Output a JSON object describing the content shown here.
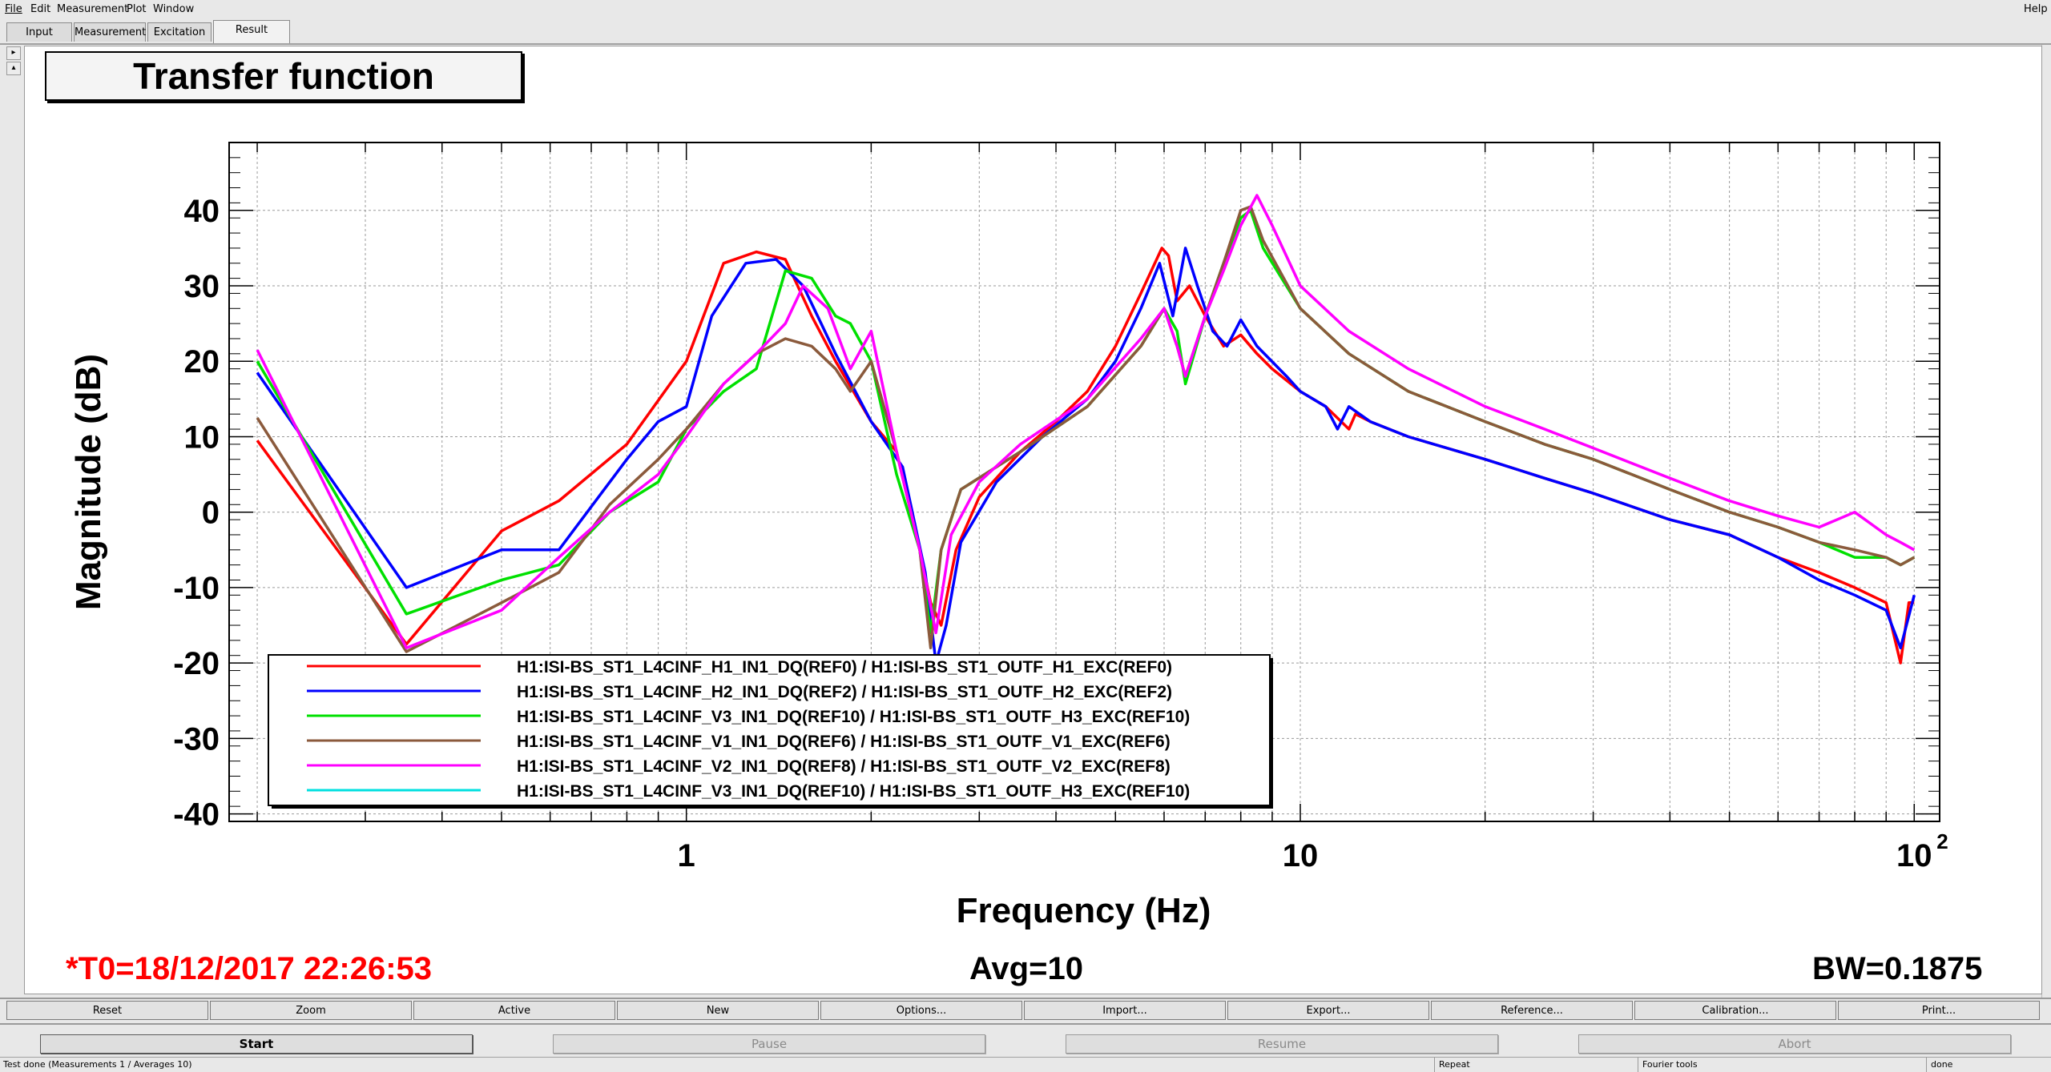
{
  "menu": {
    "file": "File",
    "edit": "Edit",
    "measurement": "Measurement",
    "plot": "Plot",
    "window": "Window",
    "help": "Help"
  },
  "tabs": [
    "Input",
    "Measurement",
    "Excitation",
    "Result"
  ],
  "plot": {
    "title": "Transfer function",
    "t0": "*T0=18/12/2017 22:26:53",
    "avg": "Avg=10",
    "bw": "BW=0.1875"
  },
  "chart_data": {
    "type": "line",
    "title": "Transfer function",
    "xlabel": "Frequency (Hz)",
    "ylabel": "Magnitude (dB)",
    "x_scale": "log",
    "xlim": [
      0.18,
      110
    ],
    "ylim": [
      -41,
      49
    ],
    "x_ticks": [
      {
        "value": 1,
        "label": "1"
      },
      {
        "value": 10,
        "label": "10"
      },
      {
        "value": 100,
        "label": "10",
        "sup": "2"
      }
    ],
    "y_ticks": [
      40,
      30,
      20,
      10,
      0,
      -10,
      -20,
      -30,
      -40
    ],
    "grid": true,
    "legend_position": "bottom-left",
    "series": [
      {
        "name": "H1:ISI-BS_ST1_L4CINF_H1_IN1_DQ(REF0) / H1:ISI-BS_ST1_OUTF_H1_EXC(REF0)",
        "color": "#ff0000",
        "points": [
          [
            0.2,
            9.5
          ],
          [
            0.35,
            -17.5
          ],
          [
            0.5,
            -2.5
          ],
          [
            0.62,
            1.5
          ],
          [
            0.8,
            9
          ],
          [
            1.0,
            20
          ],
          [
            1.15,
            33
          ],
          [
            1.3,
            34.5
          ],
          [
            1.45,
            33.5
          ],
          [
            1.6,
            26
          ],
          [
            1.75,
            20
          ],
          [
            2.0,
            12
          ],
          [
            2.2,
            8
          ],
          [
            2.4,
            -5
          ],
          [
            2.5,
            -12
          ],
          [
            2.6,
            -15
          ],
          [
            2.75,
            -5
          ],
          [
            3.0,
            2
          ],
          [
            3.5,
            8
          ],
          [
            4.0,
            12
          ],
          [
            4.5,
            16
          ],
          [
            5.0,
            22
          ],
          [
            5.5,
            29
          ],
          [
            5.95,
            35
          ],
          [
            6.1,
            34
          ],
          [
            6.3,
            28
          ],
          [
            6.6,
            30
          ],
          [
            7.0,
            26
          ],
          [
            7.5,
            22
          ],
          [
            8.0,
            23.5
          ],
          [
            8.5,
            21
          ],
          [
            9.0,
            19
          ],
          [
            10,
            16
          ],
          [
            11,
            14
          ],
          [
            12,
            11
          ],
          [
            12.3,
            13
          ],
          [
            13,
            12
          ],
          [
            15,
            10
          ],
          [
            20,
            7
          ],
          [
            25,
            4.5
          ],
          [
            30,
            2.5
          ],
          [
            40,
            -1
          ],
          [
            50,
            -3
          ],
          [
            60,
            -6
          ],
          [
            70,
            -8
          ],
          [
            80,
            -10
          ],
          [
            90,
            -12
          ],
          [
            95,
            -20
          ],
          [
            98,
            -12
          ],
          [
            100,
            -12
          ]
        ]
      },
      {
        "name": "H1:ISI-BS_ST1_L4CINF_H2_IN1_DQ(REF2) / H1:ISI-BS_ST1_OUTF_H2_EXC(REF2)",
        "color": "#0000ff",
        "points": [
          [
            0.2,
            18.5
          ],
          [
            0.35,
            -10
          ],
          [
            0.5,
            -5
          ],
          [
            0.62,
            -5
          ],
          [
            0.8,
            7
          ],
          [
            0.9,
            12
          ],
          [
            1.0,
            14
          ],
          [
            1.1,
            26
          ],
          [
            1.25,
            33
          ],
          [
            1.4,
            33.5
          ],
          [
            1.55,
            30
          ],
          [
            1.75,
            21
          ],
          [
            2.0,
            12
          ],
          [
            2.25,
            6
          ],
          [
            2.45,
            -8
          ],
          [
            2.55,
            -20
          ],
          [
            2.65,
            -15
          ],
          [
            2.8,
            -4
          ],
          [
            3.2,
            4
          ],
          [
            3.8,
            10
          ],
          [
            4.5,
            15
          ],
          [
            5.0,
            20
          ],
          [
            5.5,
            27
          ],
          [
            5.9,
            33
          ],
          [
            6.2,
            26
          ],
          [
            6.5,
            35
          ],
          [
            6.8,
            30
          ],
          [
            7.2,
            24
          ],
          [
            7.6,
            22
          ],
          [
            8.0,
            25.5
          ],
          [
            8.5,
            22
          ],
          [
            9.5,
            18
          ],
          [
            10,
            16
          ],
          [
            11,
            14
          ],
          [
            11.5,
            11
          ],
          [
            12,
            14
          ],
          [
            13,
            12
          ],
          [
            15,
            10
          ],
          [
            20,
            7
          ],
          [
            25,
            4.5
          ],
          [
            30,
            2.5
          ],
          [
            40,
            -1
          ],
          [
            50,
            -3
          ],
          [
            60,
            -6
          ],
          [
            70,
            -9
          ],
          [
            80,
            -11
          ],
          [
            90,
            -13
          ],
          [
            95,
            -18
          ],
          [
            100,
            -11
          ]
        ]
      },
      {
        "name": "H1:ISI-BS_ST1_L4CINF_V3_IN1_DQ(REF10) / H1:ISI-BS_ST1_OUTF_H3_EXC(REF10)",
        "color": "#00e000",
        "points": [
          [
            0.2,
            20
          ],
          [
            0.35,
            -13.5
          ],
          [
            0.5,
            -9
          ],
          [
            0.62,
            -7
          ],
          [
            0.75,
            0
          ],
          [
            0.9,
            4
          ],
          [
            1.0,
            11
          ],
          [
            1.15,
            16
          ],
          [
            1.3,
            19
          ],
          [
            1.45,
            32
          ],
          [
            1.6,
            31
          ],
          [
            1.75,
            26
          ],
          [
            1.85,
            25
          ],
          [
            2.0,
            20
          ],
          [
            2.2,
            5
          ],
          [
            2.4,
            -5
          ],
          [
            2.5,
            -16
          ],
          [
            2.6,
            -5
          ],
          [
            2.8,
            3
          ],
          [
            3.5,
            8
          ],
          [
            4.5,
            14
          ],
          [
            5.5,
            22
          ],
          [
            6.0,
            27
          ],
          [
            6.3,
            24
          ],
          [
            6.5,
            17
          ],
          [
            7.0,
            26
          ],
          [
            7.5,
            33
          ],
          [
            8.0,
            39
          ],
          [
            8.3,
            40
          ],
          [
            8.7,
            35
          ],
          [
            10,
            27
          ],
          [
            12,
            21
          ],
          [
            15,
            16
          ],
          [
            20,
            12
          ],
          [
            25,
            9
          ],
          [
            30,
            7
          ],
          [
            40,
            3
          ],
          [
            50,
            0
          ],
          [
            60,
            -2
          ],
          [
            70,
            -4
          ],
          [
            80,
            -6
          ],
          [
            90,
            -6
          ],
          [
            95,
            -7
          ],
          [
            100,
            -6
          ]
        ]
      },
      {
        "name": "H1:ISI-BS_ST1_L4CINF_V1_IN1_DQ(REF6) / H1:ISI-BS_ST1_OUTF_V1_EXC(REF6)",
        "color": "#8b5a3c",
        "points": [
          [
            0.2,
            12.5
          ],
          [
            0.35,
            -18.5
          ],
          [
            0.5,
            -12
          ],
          [
            0.62,
            -8
          ],
          [
            0.75,
            1
          ],
          [
            0.9,
            7
          ],
          [
            1.0,
            11
          ],
          [
            1.15,
            17
          ],
          [
            1.3,
            21
          ],
          [
            1.45,
            23
          ],
          [
            1.6,
            22
          ],
          [
            1.75,
            19
          ],
          [
            1.85,
            16
          ],
          [
            2.0,
            20
          ],
          [
            2.2,
            8
          ],
          [
            2.4,
            -5
          ],
          [
            2.5,
            -18
          ],
          [
            2.6,
            -5
          ],
          [
            2.8,
            3
          ],
          [
            3.5,
            8
          ],
          [
            4.5,
            14
          ],
          [
            5.5,
            22
          ],
          [
            6.0,
            27
          ],
          [
            6.3,
            22
          ],
          [
            6.5,
            18
          ],
          [
            7.0,
            26
          ],
          [
            7.5,
            33
          ],
          [
            8.0,
            40
          ],
          [
            8.3,
            40.5
          ],
          [
            8.7,
            36
          ],
          [
            10,
            27
          ],
          [
            12,
            21
          ],
          [
            15,
            16
          ],
          [
            20,
            12
          ],
          [
            25,
            9
          ],
          [
            30,
            7
          ],
          [
            40,
            3
          ],
          [
            50,
            0
          ],
          [
            60,
            -2
          ],
          [
            70,
            -4
          ],
          [
            80,
            -5
          ],
          [
            90,
            -6
          ],
          [
            95,
            -7
          ],
          [
            100,
            -6
          ]
        ]
      },
      {
        "name": "H1:ISI-BS_ST1_L4CINF_V2_IN1_DQ(REF8) / H1:ISI-BS_ST1_OUTF_V2_EXC(REF8)",
        "color": "#ff00ff",
        "points": [
          [
            0.2,
            21.5
          ],
          [
            0.35,
            -18
          ],
          [
            0.5,
            -13
          ],
          [
            0.62,
            -6
          ],
          [
            0.75,
            0
          ],
          [
            0.9,
            5
          ],
          [
            1.0,
            10
          ],
          [
            1.15,
            17
          ],
          [
            1.3,
            21
          ],
          [
            1.45,
            25
          ],
          [
            1.55,
            30
          ],
          [
            1.7,
            27
          ],
          [
            1.85,
            19
          ],
          [
            2.0,
            24
          ],
          [
            2.2,
            8
          ],
          [
            2.4,
            -5
          ],
          [
            2.55,
            -16
          ],
          [
            2.7,
            -3
          ],
          [
            3.0,
            4
          ],
          [
            3.5,
            9
          ],
          [
            4.5,
            15
          ],
          [
            5.5,
            23
          ],
          [
            6.0,
            27
          ],
          [
            6.3,
            22
          ],
          [
            6.5,
            18
          ],
          [
            7.0,
            26
          ],
          [
            7.5,
            32
          ],
          [
            8.0,
            38
          ],
          [
            8.5,
            42
          ],
          [
            9.0,
            38
          ],
          [
            10,
            30
          ],
          [
            12,
            24
          ],
          [
            15,
            19
          ],
          [
            20,
            14
          ],
          [
            25,
            11
          ],
          [
            30,
            8.5
          ],
          [
            40,
            4.5
          ],
          [
            50,
            1.5
          ],
          [
            60,
            -0.5
          ],
          [
            70,
            -2
          ],
          [
            80,
            0
          ],
          [
            90,
            -3
          ],
          [
            95,
            -4
          ],
          [
            100,
            -5
          ]
        ]
      },
      {
        "name": "H1:ISI-BS_ST1_L4CINF_V3_IN1_DQ(REF10) / H1:ISI-BS_ST1_OUTF_H3_EXC(REF10)",
        "color": "#00e0e0",
        "points": []
      }
    ]
  },
  "buttons_row1": [
    "Reset",
    "Zoom",
    "Active",
    "New",
    "Options...",
    "Import...",
    "Export...",
    "Reference...",
    "Calibration...",
    "Print..."
  ],
  "buttons_row2": [
    "Start",
    "Pause",
    "Resume",
    "Abort"
  ],
  "statusbar": {
    "message": "Test done (Measurements 1 / Averages 10)",
    "mode": "Repeat",
    "tools": "Fourier tools",
    "state": "done"
  }
}
